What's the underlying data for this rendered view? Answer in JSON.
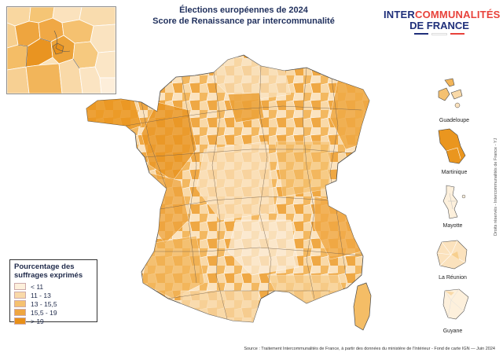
{
  "title": {
    "line1": "Élections européennes de 2024",
    "line2": "Score de Renaissance par intercommunalité"
  },
  "logo": {
    "part1": "INTER",
    "part2": "COMMUNALITÉS",
    "part3": "DE FRANCE"
  },
  "legend": {
    "title": "Pourcentage des suffrages exprimés",
    "items": [
      {
        "label": "< 11",
        "color": "#fdf0dc"
      },
      {
        "label": "11 - 13",
        "color": "#f9d9a8"
      },
      {
        "label": "13 - 15,5",
        "color": "#f5c170"
      },
      {
        "label": "15,5 - 19",
        "color": "#efa640"
      },
      {
        "label": "> 19",
        "color": "#e89018"
      }
    ]
  },
  "overseas": {
    "guadeloupe": "Guadeloupe",
    "martinique": "Martinique",
    "mayotte": "Mayotte",
    "reunion": "La Réunion",
    "guyane": "Guyane"
  },
  "source": "Source : Traitement Intercommunalités de France,  à partir des données du ministère de l'Intérieur - Fond de carte IGN  — Juin 2024",
  "rights": "Droits réservés - Intercommunalités de France - YJ"
}
